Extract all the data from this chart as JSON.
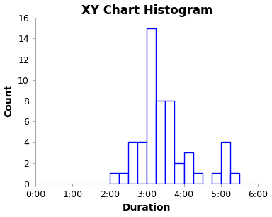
{
  "title": "XY Chart Histogram",
  "xlabel": "Duration",
  "ylabel": "Count",
  "bar_color": "#0000FF",
  "bar_face_color": "#FFFFFF",
  "background_color": "#FFFFFF",
  "xlim_minutes": [
    0,
    360
  ],
  "ylim": [
    0,
    16
  ],
  "yticks": [
    0,
    2,
    4,
    6,
    8,
    10,
    12,
    14,
    16
  ],
  "xticks_minutes": [
    0,
    60,
    120,
    180,
    240,
    300,
    360
  ],
  "xtick_labels": [
    "0:00",
    "1:00",
    "2:00",
    "3:00",
    "4:00",
    "5:00",
    "6:00"
  ],
  "title_fontsize": 12,
  "label_fontsize": 10,
  "tick_fontsize": 9,
  "bin_starts": [
    135,
    150,
    165,
    180,
    195,
    210,
    225,
    240,
    255,
    270,
    285,
    300,
    315,
    330
  ],
  "bin_ends": [
    150,
    165,
    180,
    195,
    210,
    225,
    240,
    255,
    270,
    285,
    300,
    315,
    330,
    345
  ],
  "heights": [
    1,
    1,
    4,
    4,
    15,
    8,
    8,
    2,
    3,
    1,
    0,
    1,
    4,
    1
  ]
}
